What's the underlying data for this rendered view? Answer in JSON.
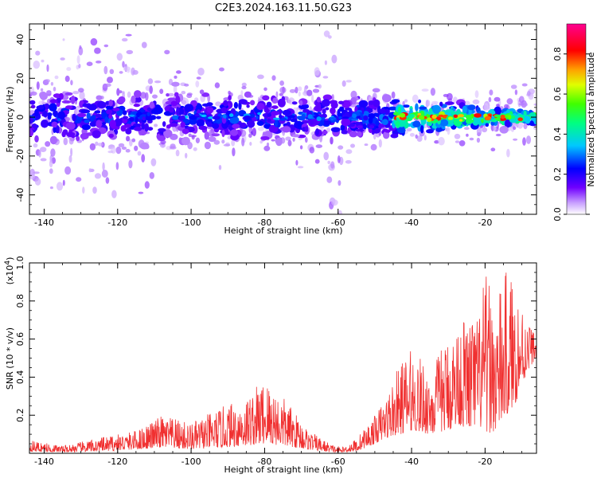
{
  "title": "C2E3.2024.163.11.50.G23",
  "chart_data": [
    {
      "type": "heatmap",
      "name": "spectrogram",
      "xlabel": "Height of straight line (km)",
      "ylabel": "Frequency (Hz)",
      "xlim": [
        -144,
        -6
      ],
      "ylim": [
        -50,
        48
      ],
      "xticks": [
        -140,
        -120,
        -100,
        -80,
        -60,
        -40,
        -20
      ],
      "yticks": [
        -40,
        -20,
        0,
        20,
        40
      ],
      "colorbar": {
        "label": "Normalized spectral amplitude",
        "range": [
          0,
          0.95
        ],
        "ticks": [
          "0.0",
          "0.2",
          "0.4",
          "0.6",
          "0.8"
        ],
        "colormap": "white-violet-blue-cyan-green-yellow-orange-red-magenta"
      },
      "band_center_hz": 0,
      "band_halfwidth_hz": {
        "left": 8,
        "right": 2
      },
      "peak_amplitude_regions": [
        {
          "x_range": [
            -45,
            -10
          ],
          "y": 0,
          "amplitude": 0.85
        },
        {
          "x_range": [
            -120,
            -55
          ],
          "y": 0,
          "amplitude": 0.35
        }
      ]
    },
    {
      "type": "line",
      "name": "snr",
      "xlabel": "Height of straight line (km)",
      "ylabel": "SNR (10 * v/v)",
      "multiplier": "(x10",
      "multiplier_exp": "4",
      "multiplier_close": ")",
      "xlim": [
        -144,
        -6
      ],
      "ylim": [
        0,
        1.0
      ],
      "xticks": [
        -140,
        -120,
        -100,
        -80,
        -60,
        -40,
        -20
      ],
      "yticks": [
        0.2,
        0.4,
        0.6,
        0.8,
        1.0
      ],
      "color": "#f03030",
      "envelope": {
        "x": [
          -144,
          -135,
          -125,
          -115,
          -108,
          -100,
          -92,
          -85,
          -80,
          -75,
          -68,
          -62,
          -59,
          -55,
          -50,
          -47,
          -43,
          -40,
          -35,
          -30,
          -27,
          -24,
          -22,
          -20,
          -17,
          -14,
          -12,
          -10,
          -8,
          -6
        ],
        "peak": [
          0.07,
          0.04,
          0.08,
          0.12,
          0.2,
          0.16,
          0.24,
          0.3,
          0.4,
          0.3,
          0.12,
          0.05,
          0.03,
          0.08,
          0.2,
          0.3,
          0.48,
          0.55,
          0.45,
          0.62,
          0.7,
          0.75,
          0.72,
          0.95,
          0.8,
          0.98,
          0.9,
          0.8,
          0.7,
          0.62
        ],
        "floor": [
          0.01,
          0.005,
          0.01,
          0.02,
          0.03,
          0.02,
          0.03,
          0.04,
          0.05,
          0.04,
          0.02,
          0.005,
          0.005,
          0.01,
          0.05,
          0.08,
          0.1,
          0.12,
          0.1,
          0.12,
          0.15,
          0.12,
          0.15,
          0.1,
          0.12,
          0.2,
          0.25,
          0.35,
          0.45,
          0.5
        ]
      }
    }
  ]
}
